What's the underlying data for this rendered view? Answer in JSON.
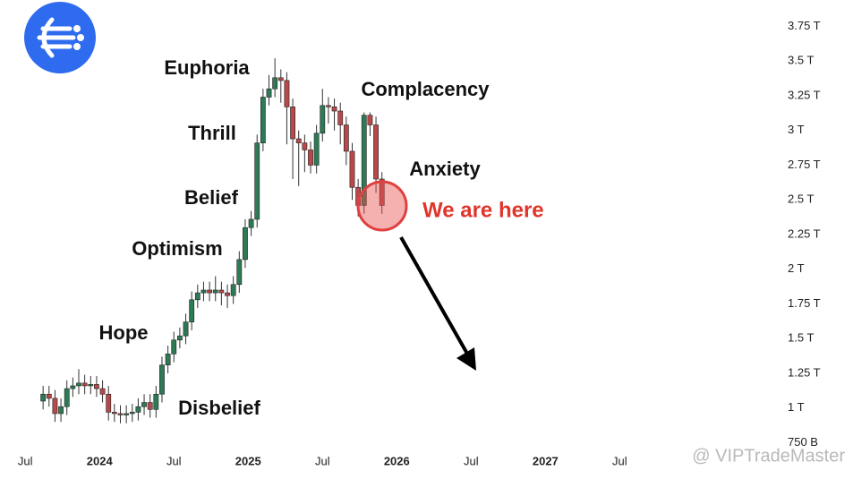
{
  "chart_data": {
    "type": "candlestick",
    "annotations": [
      "Euphoria",
      "Thrill",
      "Belief",
      "Optimism",
      "Hope",
      "Disbelief",
      "Complacency",
      "Anxiety"
    ],
    "callout": "We are here",
    "watermark": "@ VIPTradeMaster",
    "up_color": "#2e7a55",
    "down_color": "#b8484a",
    "callout_color": "#e0352b",
    "xlim": [
      2023.33,
      2028.57
    ],
    "ylim": [
      0.65,
      3.94
    ],
    "xticks": [
      {
        "value": 2023.5,
        "label": "Jul"
      },
      2024,
      {
        "value": 2024.5,
        "label": "Jul"
      },
      2025,
      {
        "value": 2025.5,
        "label": "Jul"
      },
      2026,
      {
        "value": 2026.5,
        "label": "Jul"
      },
      2027,
      {
        "value": 2027.5,
        "label": "Jul"
      }
    ],
    "yticks": [
      {
        "value": 0.75,
        "label": "750 B"
      },
      {
        "value": 1,
        "label": "1 T"
      },
      {
        "value": 1.25,
        "label": "1.25 T"
      },
      {
        "value": 1.5,
        "label": "1.5 T"
      },
      {
        "value": 1.75,
        "label": "1.75 T"
      },
      {
        "value": 2,
        "label": "2 T"
      },
      {
        "value": 2.25,
        "label": "2.25 T"
      },
      {
        "value": 2.5,
        "label": "2.5 T"
      },
      {
        "value": 2.75,
        "label": "2.75 T"
      },
      {
        "value": 3,
        "label": "3 T"
      },
      {
        "value": 3.25,
        "label": "3.25 T"
      },
      {
        "value": 3.5,
        "label": "3.5 T"
      },
      {
        "value": 3.75,
        "label": "3.75 T"
      }
    ],
    "x": [
      2023.62,
      2023.66,
      2023.7,
      2023.74,
      2023.78,
      2023.82,
      2023.86,
      2023.9,
      2023.94,
      2023.98,
      2024.02,
      2024.06,
      2024.1,
      2024.14,
      2024.18,
      2024.22,
      2024.26,
      2024.3,
      2024.34,
      2024.38,
      2024.42,
      2024.46,
      2024.5,
      2024.54,
      2024.58,
      2024.62,
      2024.66,
      2024.7,
      2024.74,
      2024.78,
      2024.82,
      2024.86,
      2024.9,
      2024.94,
      2024.98,
      2025.02,
      2025.06,
      2025.1,
      2025.14,
      2025.18,
      2025.22,
      2025.26,
      2025.3,
      2025.34,
      2025.38,
      2025.42,
      2025.46,
      2025.5,
      2025.54,
      2025.58,
      2025.62,
      2025.66,
      2025.7,
      2025.74,
      2025.78,
      2025.82,
      2025.86,
      2025.9
    ],
    "open": [
      1.05,
      1.1,
      1.07,
      0.96,
      1.01,
      1.14,
      1.16,
      1.18,
      1.16,
      1.17,
      1.14,
      1.1,
      0.97,
      0.96,
      0.95,
      0.96,
      0.97,
      1.01,
      1.04,
      0.99,
      1.1,
      1.31,
      1.39,
      1.49,
      1.52,
      1.62,
      1.78,
      1.83,
      1.85,
      1.83,
      1.85,
      1.83,
      1.81,
      1.89,
      2.07,
      2.3,
      2.36,
      2.91,
      3.24,
      3.3,
      3.38,
      3.36,
      3.17,
      2.94,
      2.91,
      2.86,
      2.75,
      2.98,
      3.18,
      3.17,
      3.14,
      3.04,
      2.85,
      2.59,
      2.46,
      3.11,
      3.04,
      2.65
    ],
    "high": [
      1.16,
      1.16,
      1.13,
      1.07,
      1.2,
      1.22,
      1.28,
      1.24,
      1.23,
      1.23,
      1.2,
      1.16,
      1.03,
      1.02,
      1.02,
      1.03,
      1.07,
      1.1,
      1.1,
      1.16,
      1.37,
      1.45,
      1.55,
      1.58,
      1.68,
      1.84,
      1.89,
      1.91,
      1.91,
      1.95,
      1.91,
      1.89,
      1.95,
      2.13,
      2.36,
      2.42,
      2.97,
      3.3,
      3.4,
      3.52,
      3.44,
      3.42,
      3.23,
      3.0,
      2.97,
      2.92,
      3.04,
      3.3,
      3.24,
      3.23,
      3.2,
      3.1,
      2.91,
      2.65,
      3.13,
      3.13,
      3.1,
      2.7
    ],
    "low": [
      0.99,
      1.01,
      0.9,
      0.9,
      0.95,
      1.08,
      1.1,
      1.1,
      1.1,
      1.08,
      1.04,
      0.91,
      0.9,
      0.89,
      0.89,
      0.9,
      0.91,
      0.95,
      0.93,
      0.93,
      1.04,
      1.25,
      1.33,
      1.43,
      1.46,
      1.56,
      1.72,
      1.77,
      1.77,
      1.77,
      1.74,
      1.72,
      1.75,
      1.83,
      2.01,
      2.24,
      2.3,
      2.85,
      3.18,
      3.24,
      3.2,
      2.9,
      2.65,
      2.6,
      2.7,
      2.69,
      2.69,
      2.92,
      3.05,
      3.0,
      2.9,
      2.75,
      2.5,
      2.38,
      2.4,
      2.96,
      2.55,
      2.4
    ],
    "close": [
      1.1,
      1.07,
      0.96,
      1.01,
      1.14,
      1.16,
      1.18,
      1.16,
      1.17,
      1.14,
      1.1,
      0.97,
      0.96,
      0.95,
      0.96,
      0.97,
      1.01,
      1.04,
      0.99,
      1.1,
      1.31,
      1.39,
      1.49,
      1.52,
      1.62,
      1.78,
      1.83,
      1.85,
      1.83,
      1.85,
      1.83,
      1.81,
      1.89,
      2.07,
      2.3,
      2.36,
      2.91,
      3.24,
      3.3,
      3.38,
      3.36,
      3.17,
      2.94,
      2.91,
      2.86,
      2.75,
      2.98,
      3.18,
      3.17,
      3.14,
      3.04,
      2.85,
      2.59,
      2.46,
      3.11,
      3.04,
      2.65,
      2.46
    ]
  }
}
